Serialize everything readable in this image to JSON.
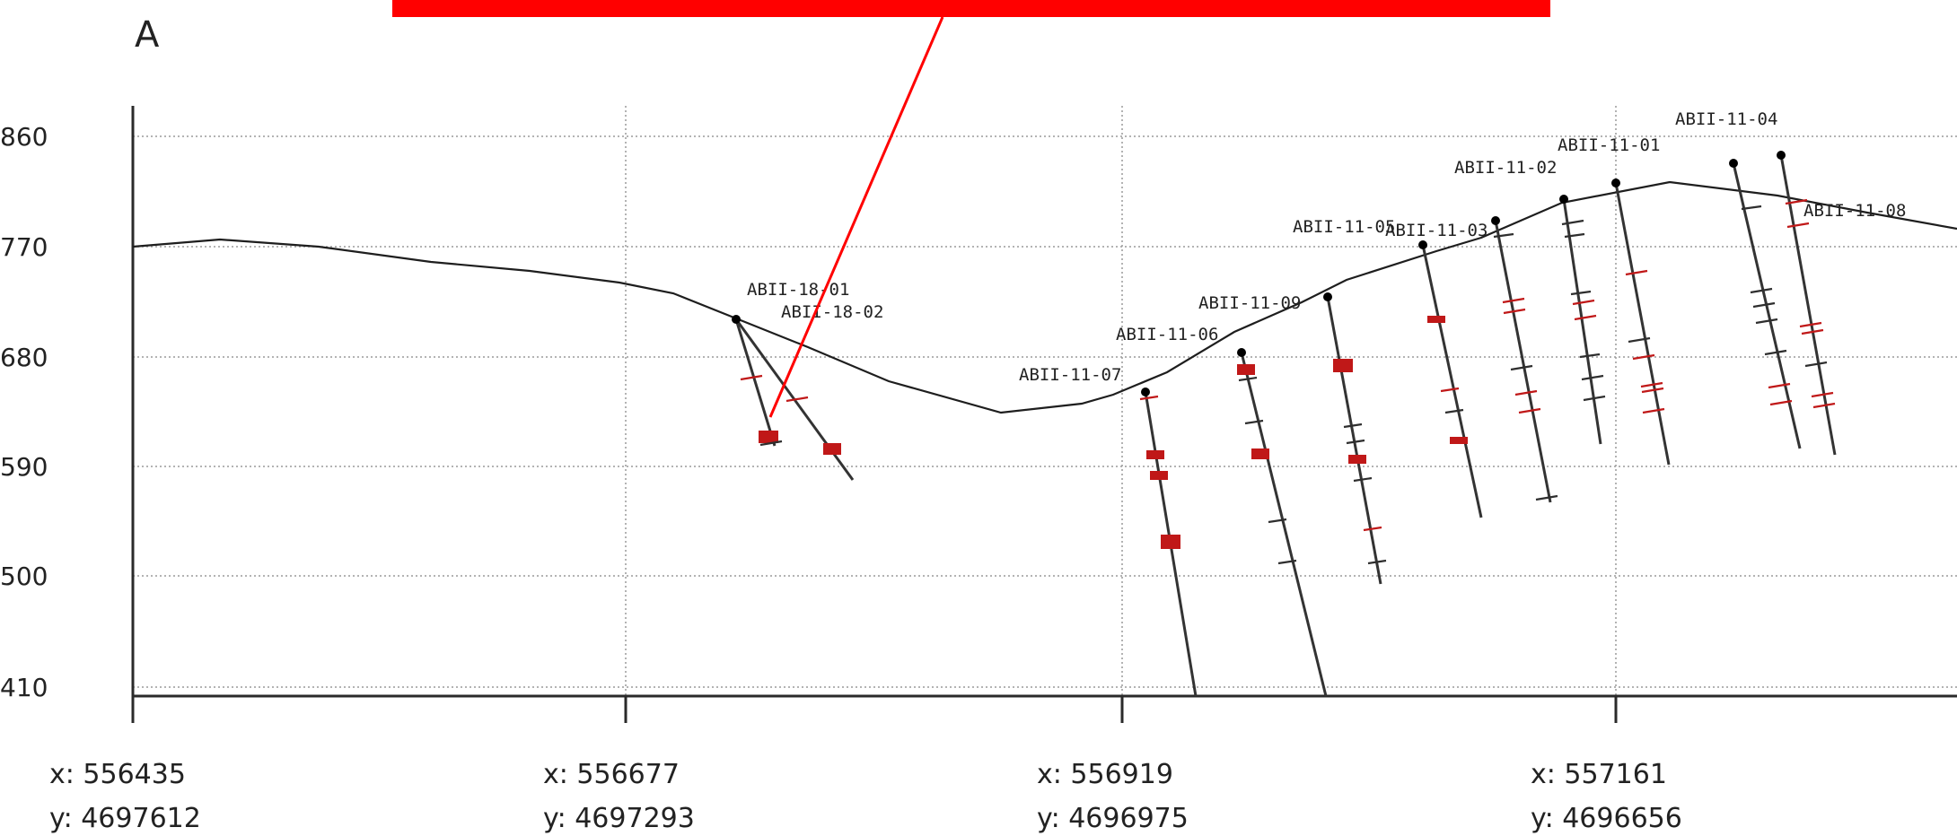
{
  "panel_label": "A",
  "colors": {
    "callout": "#ff0000",
    "ore": "#c01818",
    "waste_tick": "#2e2e2e",
    "topography": "#1e1e1e",
    "grid": "#9a9a9a"
  },
  "elevation_axis": {
    "range": [
      410,
      860
    ],
    "ticks": [
      {
        "value": 860,
        "label": "860"
      },
      {
        "value": 770,
        "label": "770"
      },
      {
        "value": 680,
        "label": "680"
      },
      {
        "value": 590,
        "label": "590"
      },
      {
        "value": 500,
        "label": "500"
      },
      {
        "value": 410,
        "label": "410"
      }
    ]
  },
  "distance_axis": {
    "ticks": [
      {
        "x_label": "x: 556435",
        "y_label": "y: 4697612"
      },
      {
        "x_label": "x: 556677",
        "y_label": "y: 4697293"
      },
      {
        "x_label": "x: 556919",
        "y_label": "y: 4696975"
      },
      {
        "x_label": "x: 557161",
        "y_label": "y: 4696656"
      }
    ]
  },
  "topography_elevations": [
    770,
    776,
    770,
    757,
    748,
    731,
    714,
    648,
    681,
    718,
    763,
    781,
    797,
    808,
    815,
    818,
    806,
    791,
    781,
    770
  ],
  "drillholes": [
    {
      "id": "ABII-18-01",
      "label": "ABII-18-01",
      "collar_elev": 707,
      "bottom_elev": 603
    },
    {
      "id": "ABII-18-02",
      "label": "ABII-18-02",
      "collar_elev": 707,
      "bottom_elev": 578
    },
    {
      "id": "ABII-11-07",
      "label": "ABII-11-07",
      "collar_elev": 648,
      "bottom_elev": 410
    },
    {
      "id": "ABII-11-06",
      "label": "ABII-11-06",
      "collar_elev": 680,
      "bottom_elev": 410
    },
    {
      "id": "ABII-11-09",
      "label": "ABII-11-09",
      "collar_elev": 731,
      "bottom_elev": 496
    },
    {
      "id": "ABII-11-05",
      "label": "ABII-11-05",
      "collar_elev": 765,
      "bottom_elev": 549
    },
    {
      "id": "ABII-11-03",
      "label": "ABII-11-03",
      "collar_elev": 785,
      "bottom_elev": 562
    },
    {
      "id": "ABII-11-02",
      "label": "ABII-11-02",
      "collar_elev": 803,
      "bottom_elev": 608
    },
    {
      "id": "ABII-11-01",
      "label": "ABII-11-01",
      "collar_elev": 816,
      "bottom_elev": 592
    },
    {
      "id": "ABII-11-04",
      "label": "ABII-11-04",
      "collar_elev": 831,
      "bottom_elev": 603
    },
    {
      "id": "ABII-11-08",
      "label": "ABII-11-08",
      "collar_elev": 833,
      "bottom_elev": 597
    }
  ]
}
